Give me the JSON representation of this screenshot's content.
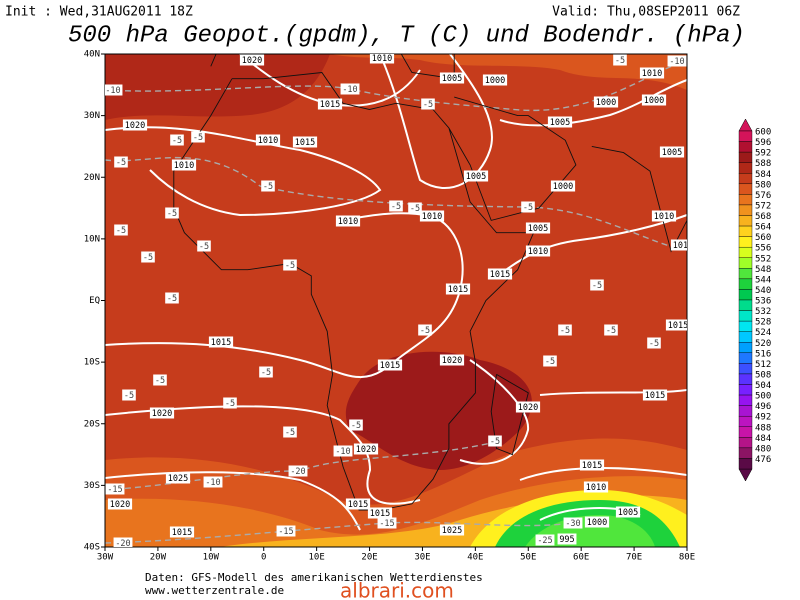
{
  "header": {
    "init": "Init : Wed,31AUG2011 18Z",
    "valid": "Valid: Thu,08SEP2011 06Z",
    "title": "500 hPa Geopot.(gpdm), T (C) und Bodendr. (hPa)"
  },
  "map": {
    "lat_labels": [
      "40N",
      "30N",
      "20N",
      "10N",
      "EQ",
      "10S",
      "20S",
      "30S",
      "40S"
    ],
    "lon_labels": [
      "30W",
      "20W",
      "10W",
      "0",
      "10E",
      "20E",
      "30E",
      "40E",
      "50E",
      "60E",
      "70E",
      "80E"
    ],
    "isobar_labels": [
      "1020",
      "1015",
      "1020",
      "1010",
      "1010",
      "1015",
      "1010",
      "1010",
      "1005",
      "1005",
      "1000",
      "1005",
      "1000",
      "1005",
      "1000",
      "1010",
      "1005",
      "1010",
      "1015",
      "1015",
      "1015",
      "1015",
      "1020",
      "1020",
      "1020",
      "1015",
      "1020",
      "1025",
      "1020",
      "1015",
      "1015",
      "1015",
      "1010",
      "1005",
      "1000",
      "995",
      "1025",
      "1015",
      "1010",
      "1000",
      "1010",
      "1015",
      "1010"
    ],
    "temperature_labels": [
      "-10",
      "-5",
      "-5",
      "-5",
      "-5",
      "-5",
      "-5",
      "-5",
      "-5",
      "-5",
      "-5",
      "-5",
      "-5",
      "-5",
      "-5",
      "-5",
      "-5",
      "-5",
      "-5",
      "-5",
      "-5",
      "-5",
      "-5",
      "-5",
      "-5",
      "-5",
      "-5",
      "-5",
      "-10",
      "-20",
      "-10",
      "-15",
      "-15",
      "-15",
      "-20",
      "-30",
      "-25",
      "-10",
      "-10",
      "-5"
    ]
  },
  "colorbar": {
    "levels": [
      600,
      596,
      592,
      588,
      584,
      580,
      576,
      572,
      568,
      564,
      560,
      556,
      552,
      548,
      544,
      540,
      536,
      532,
      528,
      524,
      520,
      516,
      512,
      508,
      504,
      500,
      496,
      492,
      488,
      484,
      480,
      476
    ],
    "colors": [
      "#d4145a",
      "#b01030",
      "#9c1a1a",
      "#b02818",
      "#c63c1c",
      "#da561e",
      "#e8741e",
      "#f0921e",
      "#f8b21e",
      "#ffd21e",
      "#fff01e",
      "#d8ff1e",
      "#a0ff28",
      "#50e63c",
      "#1ed23c",
      "#00c850",
      "#00dc8c",
      "#00e6c8",
      "#00e6f0",
      "#00c8ff",
      "#00a0ff",
      "#1e78ff",
      "#3c50ff",
      "#5a32ff",
      "#7820ff",
      "#9614f0",
      "#a814d2",
      "#bc14c0",
      "#c814a8",
      "#b41488",
      "#8c1464",
      "#5a0a46"
    ]
  },
  "footer": {
    "source": "Daten: GFS-Modell des amerikanischen Wetterdienstes",
    "website": "www.wetterzentrale.de",
    "watermark": "albrari.com"
  }
}
